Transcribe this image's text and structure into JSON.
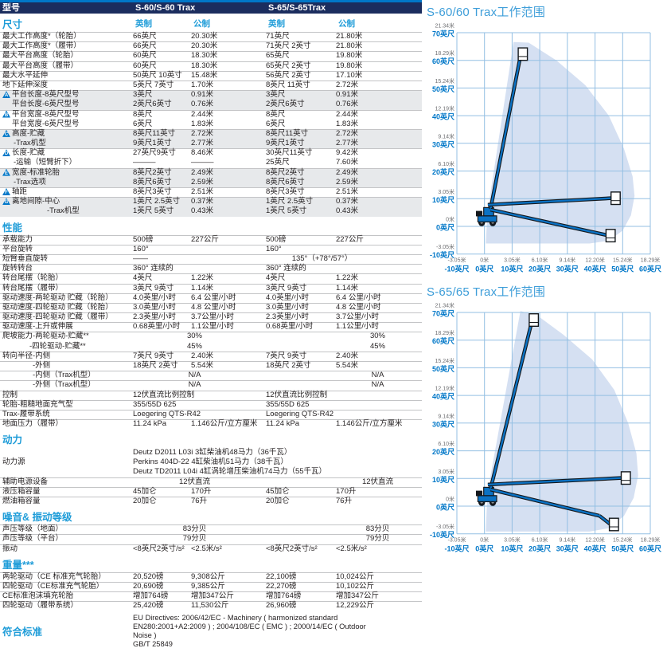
{
  "colors": {
    "accent_blue": "#0077C8",
    "navy_bar": "#1B2D5E",
    "heading_blue": "#1E9CD8",
    "chart_title_blue": "#3E9ED9",
    "grid": "#93BFE3",
    "envelope": "#D5E0F2",
    "meter_gray": "#6d6e71",
    "machine_blue": "#0B72C4",
    "machine_dark": "#14181c",
    "row_shade": "#e7e9eb",
    "row_line": "#c3c4c6"
  },
  "table": {
    "header": {
      "model_label": "型号",
      "s60": "S-60/S-60 Trax",
      "s65": "S-65/S-65Trax"
    },
    "sections": [
      {
        "id": "dimensions",
        "heading": "尺寸",
        "cols": [
          "英制",
          "公制",
          "英制",
          "公制"
        ],
        "rows": [
          {
            "label": "最大工作高度*（轮胎）",
            "border": true,
            "cells": [
              "66英尺",
              "20.30米",
              "71英尺",
              "21.80米"
            ]
          },
          {
            "label": "最大工作高度*（履带）",
            "border": true,
            "cells": [
              "66英尺",
              "20.30米",
              "71英尺 2英寸",
              "21.80米"
            ]
          },
          {
            "label": "最大平台高度（轮胎）",
            "border": true,
            "cells": [
              "60英尺",
              "18.30米",
              "65英尺",
              "19.80米"
            ]
          },
          {
            "label": "最大平台高度（履带）",
            "border": true,
            "cells": [
              "60英尺",
              "18.30米",
              "65英尺 2英寸",
              "19.80米"
            ]
          },
          {
            "label": "最大水平延伸",
            "border": true,
            "cells": [
              "50英尺 10英寸",
              "15.48米",
              "56英尺 2英寸",
              "17.10米"
            ]
          },
          {
            "label": "地下延伸深度",
            "border": true,
            "cells": [
              "5英尺 7英寸",
              "1.70米",
              "8英尺 11英寸",
              "2.72米"
            ]
          },
          {
            "icon": "A",
            "label": "平台长度-8英尺型号",
            "border": true,
            "shaded": true,
            "cells": [
              "3英尺",
              "0.91米",
              "3英尺",
              "0.91米"
            ]
          },
          {
            "label": "平台长度-6英尺型号",
            "indent": 12,
            "shaded": true,
            "cells": [
              "2英尺6英寸",
              "0.76米",
              "2英尺6英寸",
              "0.76米"
            ]
          },
          {
            "icon": "B",
            "label": "平台宽度-8英尺型号",
            "border": true,
            "cells": [
              "8英尺",
              "2.44米",
              "8英尺",
              "2.44米"
            ]
          },
          {
            "label": "平台宽度-6英尺型号",
            "indent": 12,
            "cells": [
              "6英尺",
              "1.83米",
              "6英尺",
              "1.83米"
            ]
          },
          {
            "icon": "C",
            "label": "高度-贮藏",
            "border": true,
            "shaded": true,
            "cells": [
              "8英尺11英寸",
              "2.72米",
              "8英尺11英寸",
              "2.72米"
            ]
          },
          {
            "label": "-Trax机型",
            "indent": 14,
            "shaded": true,
            "cells": [
              "9英尺1英寸",
              "2.77米",
              "9英尺1英寸",
              "2.77米"
            ]
          },
          {
            "icon": "D",
            "label": "长度-贮藏",
            "border": true,
            "cells": [
              "27英尺9英寸",
              "8.46米",
              "30英尺11英寸",
              "9.42米"
            ]
          },
          {
            "label": "-运输（短臂折下）",
            "indent": 14,
            "cells": [
              "———",
              "———",
              "25英尺",
              "7.60米"
            ]
          },
          {
            "icon": "E",
            "label": "宽度-标准轮胎",
            "border": true,
            "shaded": true,
            "cells": [
              "8英尺2英寸",
              "2.49米",
              "8英尺2英寸",
              "2.49米"
            ]
          },
          {
            "label": "-Trax选项",
            "indent": 14,
            "shaded": true,
            "cells": [
              "8英尺6英寸",
              "2.59米",
              "8英尺6英寸",
              "2.59米"
            ]
          },
          {
            "icon": "F",
            "label": "轴距",
            "border": true,
            "cells": [
              "8英尺3英寸",
              "2.51米",
              "8英尺3英寸",
              "2.51米"
            ]
          },
          {
            "icon": "G",
            "label": "离地间隙-中心",
            "border": true,
            "shaded": true,
            "cells": [
              "1英尺 2.5英寸",
              "0.37米",
              "1英尺 2.5英寸",
              "0.37米"
            ]
          },
          {
            "label": "-Trax机型",
            "indent": 56,
            "shaded": true,
            "cells": [
              "1英尺 5英寸",
              "0.43米",
              "1英尺 5英寸",
              "0.43米"
            ]
          }
        ]
      },
      {
        "id": "performance",
        "heading": "性能",
        "rows": [
          {
            "label": "承载能力",
            "border": true,
            "cells": [
              "500磅",
              "227公斤",
              "500磅",
              "227公斤"
            ]
          },
          {
            "label": "平台旋转",
            "border": true,
            "cells": [
              "160°",
              "",
              "160°",
              ""
            ]
          },
          {
            "label": "短臂垂直旋转",
            "border": true,
            "mode": "left1center2",
            "cells": [
              "——",
              "135°（+78°/57°）"
            ]
          },
          {
            "label": "旋转转台",
            "border": true,
            "mode": "span2",
            "cells": [
              "360° 连续的",
              "360° 连续的"
            ]
          },
          {
            "label": "转台尾摆（轮胎）",
            "border": true,
            "cells": [
              "4英尺",
              "1.22米",
              "4英尺",
              "1.22米"
            ]
          },
          {
            "label": "转台尾摆（履带）",
            "border": true,
            "cells": [
              "3英尺 9英寸",
              "1.14米",
              "3英尺 9英寸",
              "1.14米"
            ]
          },
          {
            "label": "驱动速度-两轮驱动 贮藏（轮胎）",
            "border": true,
            "cells": [
              "4.0英里/小时",
              "6.4 公里/小时",
              "4.0英里/小时",
              "6.4 公里/小时"
            ]
          },
          {
            "label": "驱动速度-四轮驱动 贮藏（轮胎）",
            "border": true,
            "cells": [
              "3.0英里/小时",
              "4.8 公里/小时",
              "3.0英里/小时",
              "4.8 公里/小时"
            ]
          },
          {
            "label": "驱动速度-四轮驱动 贮藏（履带）",
            "border": true,
            "cells": [
              "2.3英里/小时",
              "3.7公里/小时",
              "2.3英里/小时",
              "3.7公里/小时"
            ]
          },
          {
            "label": "驱动速度-上升或伸展",
            "border": true,
            "cells": [
              "0.68英里/小时",
              "1.1公里/小时",
              "0.68英里/小时",
              "1.1公里/小时"
            ]
          },
          {
            "label": "爬坡能力-两轮驱动-贮藏**",
            "border": true,
            "mode": "center2",
            "cells": [
              "30%",
              "30%"
            ]
          },
          {
            "label": "-四轮驱动-贮藏**",
            "indent": 34,
            "mode": "center2",
            "cells": [
              "45%",
              "45%"
            ]
          },
          {
            "label": "转向半径-内侧",
            "border": true,
            "cells": [
              "7英尺 9英寸",
              "2.40米",
              "7英尺 9英寸",
              "2.40米"
            ]
          },
          {
            "label": "-外侧",
            "indent": 38,
            "border": true,
            "cells": [
              "18英尺 2英寸",
              "5.54米",
              "18英尺 2英寸",
              "5.54米"
            ]
          },
          {
            "label": "-内侧（Trax机型）",
            "indent": 38,
            "border": true,
            "mode": "center2",
            "cells": [
              "N/A",
              "N/A"
            ]
          },
          {
            "label": "-外侧（Trax机型）",
            "indent": 38,
            "border": true,
            "mode": "center2",
            "cells": [
              "N/A",
              "N/A"
            ]
          },
          {
            "label": "控制",
            "border": true,
            "mode": "span2",
            "cells": [
              "12伏直流比例控制",
              "12伏直流比例控制"
            ]
          },
          {
            "label": "轮胎-粗糙地面充气型",
            "border": true,
            "mode": "span2",
            "cells": [
              "355/55D 625",
              "355/55D 625"
            ]
          },
          {
            "label": "Trax-履带系统",
            "border": true,
            "mode": "span2",
            "cells": [
              "Loegering QTS-R42",
              "Loegering QTS-R42"
            ]
          },
          {
            "label": "地面压力（履带）",
            "border": true,
            "cells": [
              "11.24 kPa",
              "1.146公斤/立方厘米",
              "11.24 kPa",
              "1.146公斤/立方厘米"
            ]
          }
        ]
      },
      {
        "id": "power",
        "heading": "动力",
        "rows": [
          {
            "label": "动力源",
            "mode": "block",
            "lines": [
              "Deutz D2011 L03i 3缸柴油机48马力（36千瓦）",
              "Perkins 404D-22 4缸柴油机51马力（38千瓦）",
              "Deutz TD2011 L04i 4缸涡轮增压柴油机74马力（55千瓦）"
            ]
          },
          {
            "label": "辅助电源设备",
            "border": true,
            "mode": "center2",
            "cells": [
              "12伏直流",
              "12伏直流"
            ]
          },
          {
            "label": "液压箱容量",
            "border": true,
            "cells": [
              "45加仑",
              "170升",
              "45加仑",
              "170升"
            ]
          },
          {
            "label": "燃油箱容量",
            "border": true,
            "cells": [
              "20加仑",
              "76升",
              "20加仑",
              "76升"
            ]
          }
        ]
      },
      {
        "id": "noise",
        "heading": "噪音& 振动等级",
        "rows": [
          {
            "label": "声压等级（地面）",
            "border": true,
            "mode": "center2",
            "cells": [
              "83分贝",
              "83分贝"
            ]
          },
          {
            "label": "声压等级（平台）",
            "border": true,
            "mode": "center2",
            "cells": [
              "79分贝",
              "79分贝"
            ]
          },
          {
            "label": "振动",
            "border": true,
            "cells": [
              "<8英尺2英寸/s²",
              "<2.5米/s²",
              "<8英尺2英寸/s²",
              "<2.5米/s²"
            ]
          }
        ]
      },
      {
        "id": "weight",
        "heading": "重量***",
        "rows": [
          {
            "label": "两轮驱动（CE 标准充气轮胎）",
            "border": true,
            "cells": [
              "20,520磅",
              "9,308公斤",
              "22,100磅",
              "10,024公斤"
            ]
          },
          {
            "label": "四轮驱动（CE标准充气轮胎）",
            "border": true,
            "cells": [
              "20,690磅",
              "9,385公斤",
              "22,270磅",
              "10,102公斤"
            ]
          },
          {
            "label": "CE标准泡沫填充轮胎",
            "border": true,
            "cells": [
              "增加764磅",
              "增加347公斤",
              "增加764磅",
              "增加347公斤"
            ]
          },
          {
            "label": "四轮驱动（履带系统）",
            "border": true,
            "cells": [
              "25,420磅",
              "11,530公斤",
              "26,960磅",
              "12,229公斤"
            ]
          }
        ]
      },
      {
        "id": "compliance",
        "heading": "符合标准",
        "lines": [
          "EU Directives: 2006/42/EC - Machinery ( harmonized standard",
          "EN280:2001+A2:2009 ) ; 2004/108/EC ( EMC ) ; 2000/14/EC ( Outdoor",
          "Noise )",
          "GB/T 25849"
        ]
      }
    ]
  },
  "chart_data": [
    {
      "type": "area",
      "title": "S-60/60 Trax工作范围",
      "xlabel": "水平距离",
      "ylabel": "高度",
      "grid": true,
      "x_ticks_ft": [
        -10,
        0,
        10,
        20,
        30,
        40,
        50,
        60
      ],
      "x_tick_labels_m": [
        "-3.05米",
        "0米",
        "3.05米",
        "6.10米",
        "9.14米",
        "12.20米",
        "15.24米",
        "18.29米"
      ],
      "x_tick_labels_ft": [
        "-10英尺",
        "0英尺",
        "10英尺",
        "20英尺",
        "30英尺",
        "40英尺",
        "50英尺",
        "60英尺"
      ],
      "y_ticks_ft": [
        70,
        60,
        50,
        40,
        30,
        20,
        10,
        0,
        -10
      ],
      "y_tick_labels_m": [
        "21.34米",
        "18.29米",
        "15.24米",
        "12.19米",
        "9.14米",
        "6.10米",
        "3.05米",
        "0米",
        "-3.05米"
      ],
      "y_tick_labels_ft": [
        "70英尺",
        "60英尺",
        "50英尺",
        "40英尺",
        "30英尺",
        "20英尺",
        "10英尺",
        "0英尺",
        "-10英尺"
      ],
      "max_platform_height_ft": 60,
      "max_horizontal_reach_ft": 50.8,
      "below_grade_reach_ft": 5.6,
      "envelope_ft": [
        [
          0.5,
          -6.2
        ],
        [
          38,
          -6.2
        ],
        [
          45,
          -5.2
        ],
        [
          50,
          -1.5
        ],
        [
          53,
          4
        ],
        [
          54.3,
          11
        ],
        [
          53.6,
          18
        ],
        [
          50.5,
          28
        ],
        [
          45,
          40
        ],
        [
          36.5,
          51
        ],
        [
          26,
          60
        ],
        [
          16,
          66.4
        ],
        [
          10.5,
          66.6
        ],
        [
          1,
          4.5
        ]
      ],
      "machine": {
        "raised_platform_ft": [
          12.2,
          60
        ],
        "horiz_platform_ft": [
          45.8,
          10
        ],
        "low_platform_ft": [
          44,
          -5.6
        ],
        "jib_below": false
      }
    },
    {
      "type": "area",
      "title": "S-65/65 Trax工作范围",
      "xlabel": "水平距离",
      "ylabel": "高度",
      "grid": true,
      "x_ticks_ft": [
        -10,
        0,
        10,
        20,
        30,
        40,
        50,
        60
      ],
      "x_tick_labels_m": [
        "-3.05米",
        "0米",
        "3.05米",
        "6.10米",
        "9.14米",
        "12.20米",
        "15.24米",
        "18.29米"
      ],
      "x_tick_labels_ft": [
        "-10英尺",
        "0英尺",
        "10英尺",
        "20英尺",
        "30英尺",
        "40英尺",
        "50英尺",
        "60英尺"
      ],
      "y_ticks_ft": [
        70,
        60,
        50,
        40,
        30,
        20,
        10,
        0,
        -10
      ],
      "y_tick_labels_m": [
        "21.34米",
        "18.29米",
        "15.24米",
        "12.19米",
        "9.14米",
        "6.10米",
        "3.05米",
        "0米",
        "-3.05米"
      ],
      "y_tick_labels_ft": [
        "70英尺",
        "60英尺",
        "50英尺",
        "40英尺",
        "30英尺",
        "20英尺",
        "10英尺",
        "0英尺",
        "-10英尺"
      ],
      "max_platform_height_ft": 65,
      "max_horizontal_reach_ft": 56.2,
      "below_grade_reach_ft": 8.9,
      "envelope_ft": [
        [
          0.5,
          -9.2
        ],
        [
          38,
          -9.2
        ],
        [
          45,
          -8
        ],
        [
          50.5,
          -3.5
        ],
        [
          54,
          3
        ],
        [
          55.6,
          11
        ],
        [
          55,
          19
        ],
        [
          52,
          30
        ],
        [
          47,
          42
        ],
        [
          39,
          53
        ],
        [
          28.5,
          62
        ],
        [
          19,
          69
        ],
        [
          13,
          70.5
        ],
        [
          1,
          4.5
        ]
      ],
      "machine": {
        "raised_platform_ft": [
          16.2,
          65
        ],
        "horiz_platform_ft": [
          49.5,
          10
        ],
        "low_platform_ft": [
          45.2,
          -8.9
        ],
        "jib_below": true
      }
    }
  ]
}
